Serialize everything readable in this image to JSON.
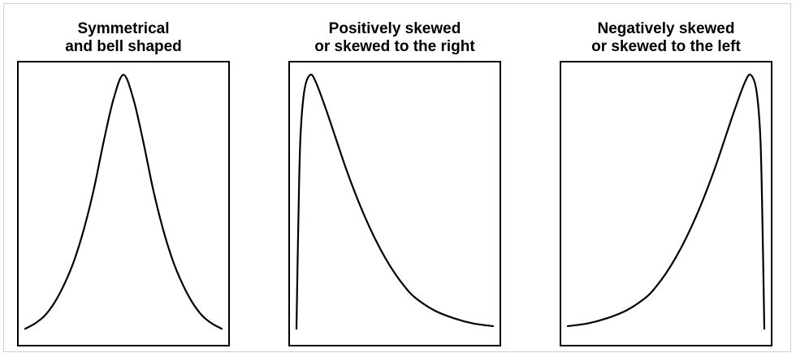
{
  "chart_data": [
    {
      "type": "line",
      "title_lines": [
        "Symmetrical",
        "and bell shaped"
      ],
      "shape": "symmetric",
      "xlabel": "",
      "ylabel": "",
      "grid": false,
      "axis_ticks": false,
      "series": [
        {
          "x": [
            0,
            0.05,
            0.1,
            0.15,
            0.2,
            0.25,
            0.3,
            0.35,
            0.4,
            0.45,
            0.5,
            0.55,
            0.6,
            0.65,
            0.7,
            0.75,
            0.8,
            0.85,
            0.9,
            0.95,
            1
          ],
          "y": [
            0.03,
            0.05,
            0.08,
            0.13,
            0.2,
            0.29,
            0.41,
            0.56,
            0.74,
            0.9,
            0.99,
            0.9,
            0.74,
            0.56,
            0.41,
            0.29,
            0.2,
            0.13,
            0.08,
            0.05,
            0.03
          ]
        }
      ]
    },
    {
      "type": "line",
      "title_lines": [
        "Positively skewed",
        "or skewed to the right"
      ],
      "shape": "right-skewed",
      "xlabel": "",
      "ylabel": "",
      "grid": false,
      "axis_ticks": false,
      "series": [
        {
          "x": [
            0,
            0.01,
            0.02,
            0.04,
            0.07,
            0.1,
            0.15,
            0.2,
            0.25,
            0.3,
            0.35,
            0.4,
            0.45,
            0.5,
            0.55,
            0.6,
            0.7,
            0.8,
            0.9,
            1
          ],
          "y": [
            0.03,
            0.45,
            0.75,
            0.93,
            0.99,
            0.96,
            0.86,
            0.75,
            0.64,
            0.54,
            0.45,
            0.37,
            0.3,
            0.24,
            0.19,
            0.15,
            0.1,
            0.07,
            0.05,
            0.04
          ]
        }
      ]
    },
    {
      "type": "line",
      "title_lines": [
        "Negatively skewed",
        "or skewed to the left"
      ],
      "shape": "left-skewed",
      "xlabel": "",
      "ylabel": "",
      "grid": false,
      "axis_ticks": false,
      "series": [
        {
          "x": [
            0,
            0.1,
            0.2,
            0.3,
            0.4,
            0.45,
            0.5,
            0.55,
            0.6,
            0.65,
            0.7,
            0.75,
            0.8,
            0.85,
            0.9,
            0.93,
            0.96,
            0.98,
            0.99,
            1
          ],
          "y": [
            0.04,
            0.05,
            0.07,
            0.1,
            0.15,
            0.19,
            0.24,
            0.3,
            0.37,
            0.45,
            0.54,
            0.64,
            0.75,
            0.86,
            0.96,
            0.99,
            0.93,
            0.75,
            0.45,
            0.03
          ]
        }
      ]
    }
  ]
}
